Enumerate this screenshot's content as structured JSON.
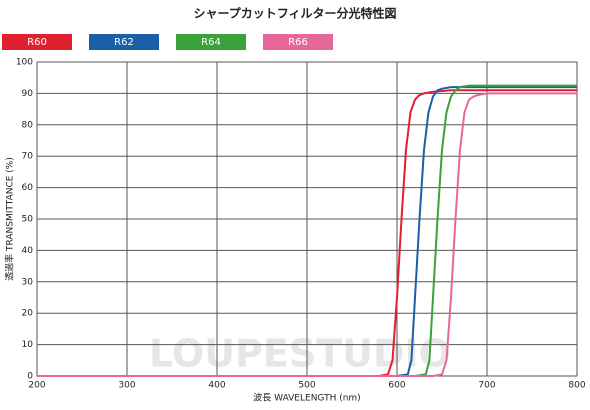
{
  "chart_data": {
    "type": "line",
    "title": "シャープカットフィルター分光特性図",
    "x_label": "波長  WAVELENGTH (nm)",
    "y_label": "透過率 TRANSMITTANCE (%)",
    "watermark": "LOUPESTUDIO",
    "xlim": [
      200,
      800
    ],
    "xticks": [
      200,
      300,
      400,
      500,
      600,
      700,
      800
    ],
    "ylim": [
      0,
      100
    ],
    "yticks": [
      0,
      10,
      20,
      30,
      40,
      50,
      60,
      70,
      80,
      90,
      100
    ],
    "grid": true,
    "series": [
      {
        "name": "R60",
        "color": "#e0202e",
        "x": [
          200,
          580,
          590,
          595,
          600,
          605,
          610,
          615,
          620,
          625,
          630,
          640,
          660,
          700,
          800
        ],
        "values": [
          0,
          0,
          0.5,
          5,
          25,
          50,
          72,
          84,
          88,
          89.5,
          90,
          90.5,
          91,
          91,
          91
        ]
      },
      {
        "name": "R62",
        "color": "#1b5fa8",
        "x": [
          200,
          600,
          612,
          616,
          620,
          625,
          630,
          635,
          640,
          645,
          650,
          660,
          680,
          800
        ],
        "values": [
          0,
          0,
          0.5,
          5,
          25,
          50,
          72,
          84,
          89,
          91,
          91.5,
          92,
          92,
          92
        ]
      },
      {
        "name": "R64",
        "color": "#3aa23a",
        "x": [
          200,
          620,
          632,
          636,
          640,
          645,
          650,
          655,
          660,
          665,
          670,
          680,
          700,
          800
        ],
        "values": [
          0,
          0,
          0.5,
          5,
          25,
          50,
          72,
          84,
          89,
          91,
          92,
          92.5,
          92.5,
          92.5
        ]
      },
      {
        "name": "R66",
        "color": "#e8679a",
        "x": [
          200,
          640,
          650,
          655,
          660,
          665,
          670,
          675,
          680,
          685,
          690,
          700,
          720,
          800
        ],
        "values": [
          0,
          0,
          0.5,
          5,
          25,
          50,
          72,
          84,
          88,
          89,
          89.5,
          90,
          90,
          90
        ]
      }
    ]
  }
}
